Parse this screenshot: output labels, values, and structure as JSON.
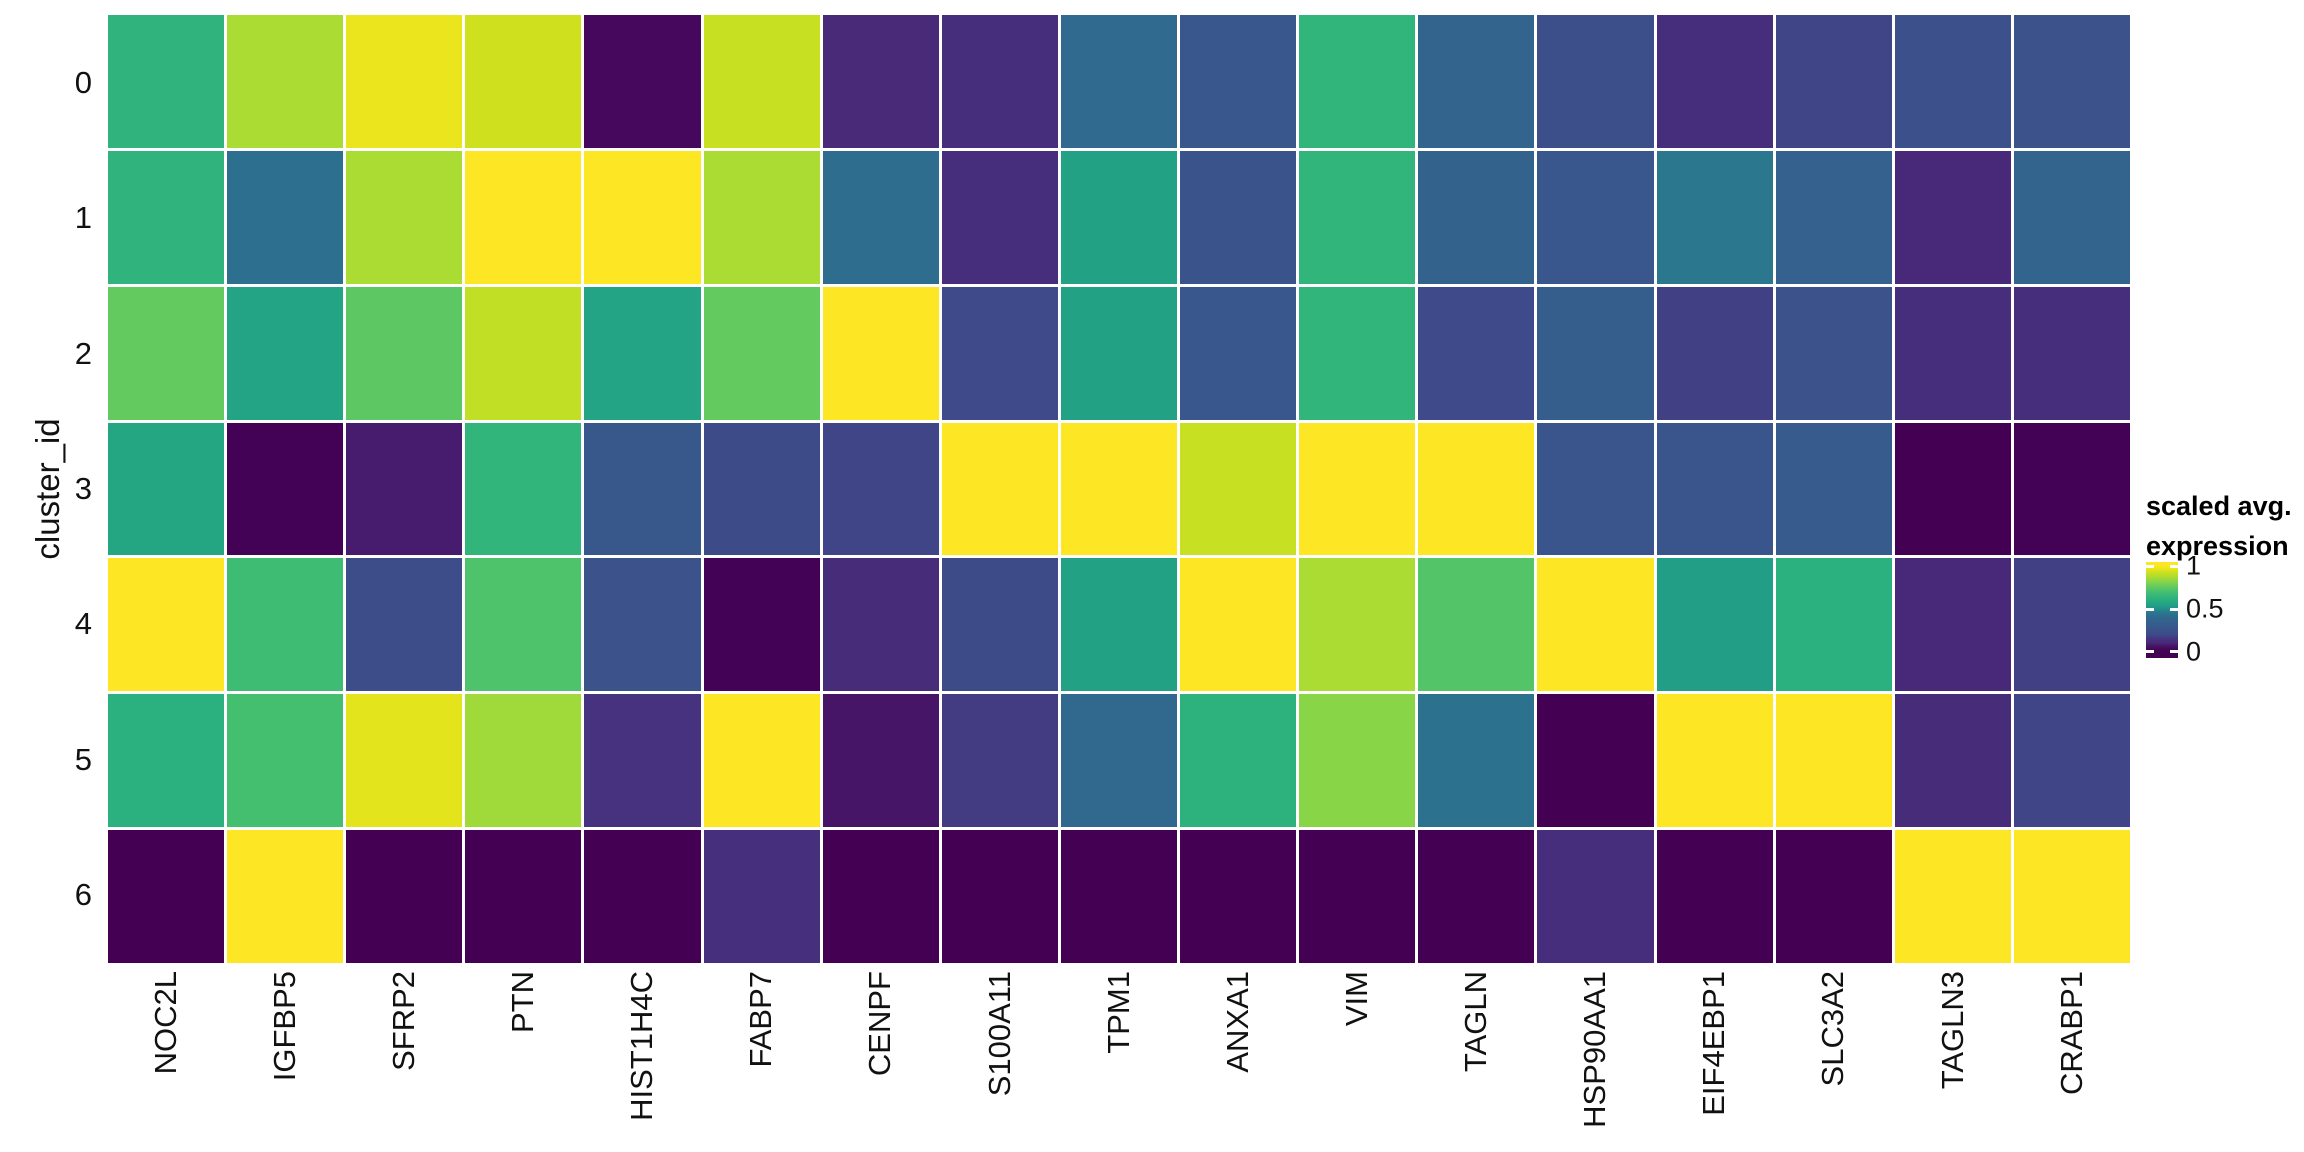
{
  "page": {
    "background": "#ffffff",
    "text_color": "#111111"
  },
  "axis": {
    "y_title": "cluster_id"
  },
  "legend": {
    "title_line1": "scaled avg.",
    "title_line2": "expression",
    "tick_labels": [
      "1",
      "0.5",
      "0"
    ],
    "tick_values": [
      1,
      0.5,
      0
    ]
  },
  "colors": {
    "viridis_low": "#440154",
    "viridis_mid": "#21908c",
    "viridis_high": "#fde725",
    "cell_gap": "#ffffff"
  },
  "chart_data": {
    "type": "heatmap",
    "title": "",
    "xlabel": "",
    "ylabel": "cluster_id",
    "colormap": "viridis",
    "legend_title": "scaled avg. expression",
    "colorbar_ticks": [
      1,
      0.5,
      0
    ],
    "value_range": [
      0,
      1
    ],
    "x_categories": [
      "NOC2L",
      "IGFBP5",
      "SFRP2",
      "PTN",
      "HIST1H4C",
      "FABP7",
      "CENPF",
      "S100A11",
      "TPM1",
      "ANXA1",
      "VIM",
      "TAGLN",
      "HSP90AA1",
      "EIF4EBP1",
      "SLC3A2",
      "TAGLN3",
      "CRABP1"
    ],
    "y_categories": [
      "0",
      "1",
      "2",
      "3",
      "4",
      "5",
      "6"
    ],
    "values": [
      [
        0.63,
        0.87,
        0.97,
        0.93,
        0.05,
        0.92,
        0.11,
        0.13,
        0.41,
        0.28,
        0.64,
        0.37,
        0.23,
        0.13,
        0.19,
        0.24,
        0.25
      ],
      [
        0.63,
        0.44,
        0.87,
        1.0,
        1.0,
        0.87,
        0.43,
        0.13,
        0.55,
        0.26,
        0.64,
        0.36,
        0.28,
        0.46,
        0.35,
        0.1,
        0.37
      ],
      [
        0.76,
        0.56,
        0.75,
        0.91,
        0.56,
        0.76,
        1.0,
        0.2,
        0.55,
        0.28,
        0.64,
        0.2,
        0.33,
        0.18,
        0.25,
        0.13,
        0.13
      ],
      [
        0.57,
        0.01,
        0.08,
        0.64,
        0.29,
        0.21,
        0.19,
        1.0,
        1.0,
        0.92,
        1.0,
        1.0,
        0.27,
        0.27,
        0.31,
        0.0,
        0.01
      ],
      [
        1.0,
        0.68,
        0.22,
        0.72,
        0.25,
        0.01,
        0.12,
        0.21,
        0.55,
        1.0,
        0.87,
        0.73,
        1.0,
        0.54,
        0.61,
        0.1,
        0.18
      ],
      [
        0.61,
        0.7,
        0.96,
        0.85,
        0.15,
        1.0,
        0.07,
        0.17,
        0.4,
        0.62,
        0.82,
        0.45,
        0.0,
        1.0,
        1.0,
        0.12,
        0.19
      ],
      [
        0.0,
        1.0,
        0.0,
        0.0,
        0.0,
        0.14,
        0.0,
        0.0,
        0.0,
        0.0,
        0.0,
        0.0,
        0.13,
        0.0,
        0.0,
        1.0,
        1.0
      ]
    ]
  }
}
